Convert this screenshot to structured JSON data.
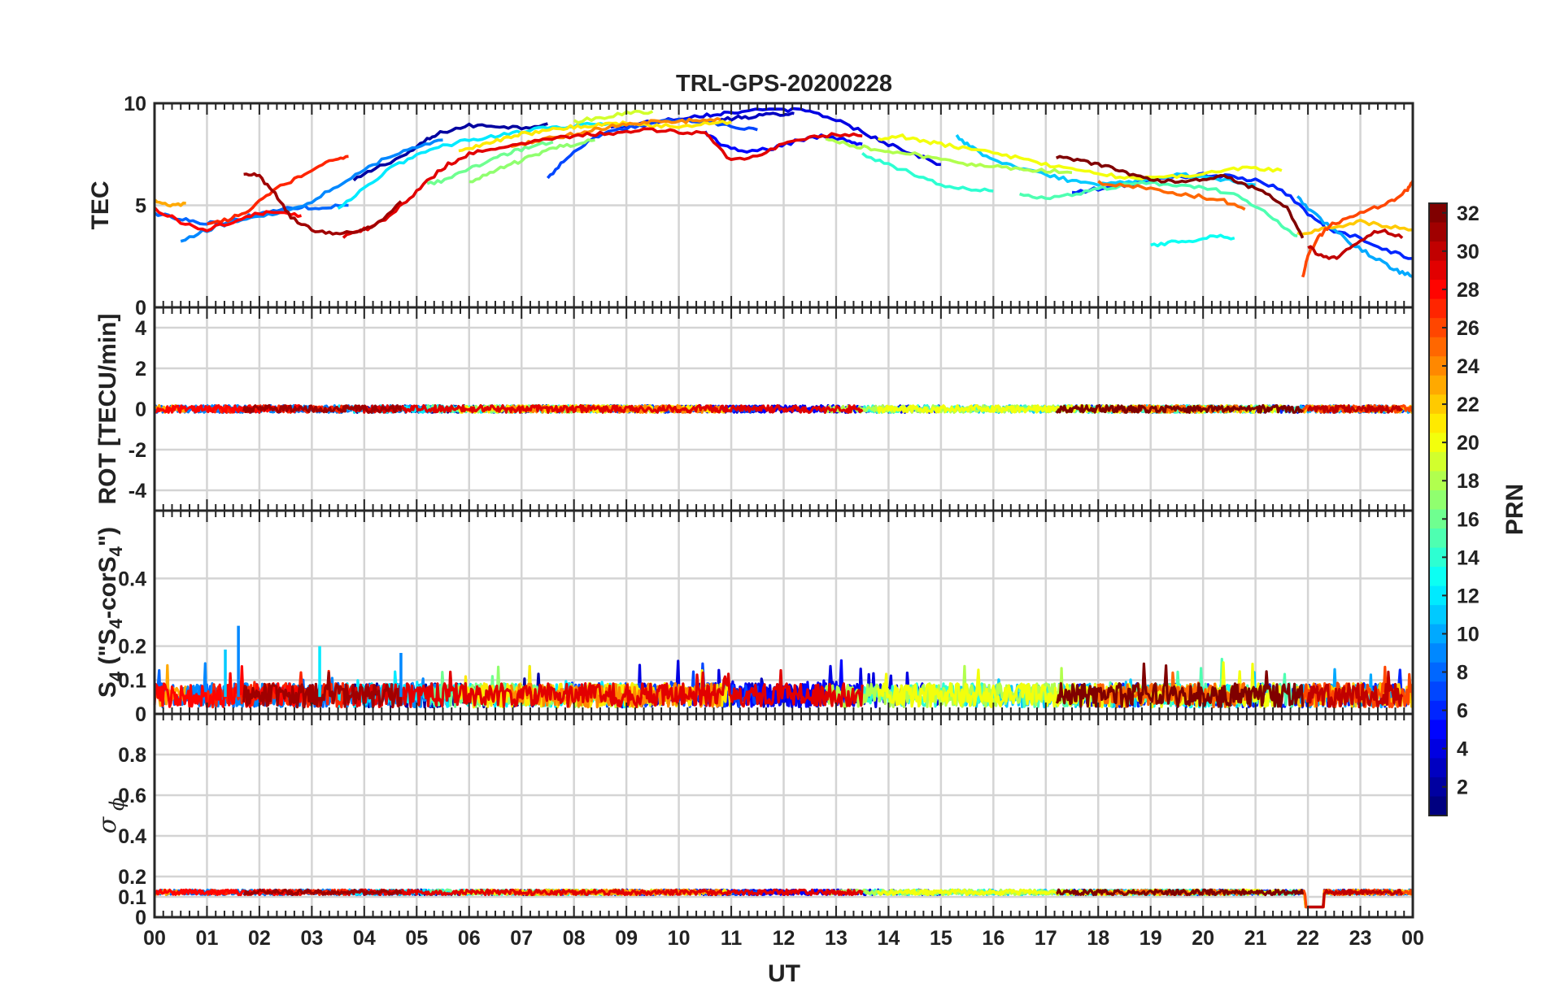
{
  "chart_data": {
    "type": "line",
    "title": "TRL-GPS-20200228",
    "xlabel": "UT",
    "x_tick_labels": [
      "00",
      "01",
      "02",
      "03",
      "04",
      "05",
      "06",
      "07",
      "08",
      "09",
      "10",
      "11",
      "12",
      "13",
      "14",
      "15",
      "16",
      "17",
      "18",
      "19",
      "20",
      "21",
      "22",
      "23",
      "00"
    ],
    "xlim_hours": [
      0,
      24
    ],
    "grid": true,
    "panels": [
      {
        "key": "tec",
        "ylabel": "TEC",
        "ylim": [
          0,
          10
        ],
        "yticks": [
          0,
          5,
          10
        ],
        "ytick_labels": [
          "0",
          "5",
          "10"
        ]
      },
      {
        "key": "rot",
        "ylabel": "ROT [TECU/min]",
        "ylim": [
          -5,
          5
        ],
        "yticks": [
          -4,
          -2,
          0,
          2,
          4
        ],
        "ytick_labels": [
          "-4",
          "-2",
          "0",
          "2",
          "4"
        ]
      },
      {
        "key": "s4",
        "ylabel_main": "S",
        "ylabel_sub": "4",
        "ylabel_rest": " (\"S",
        "ylabel_sub2": "4",
        "ylabel_mid": "-corS",
        "ylabel_sub3": "4",
        "ylabel_end": "\")",
        "ylim": [
          0,
          0.6
        ],
        "yticks": [
          0,
          0.1,
          0.2,
          0.4
        ],
        "ytick_labels": [
          "0",
          "0.1",
          "0.2",
          "0.4"
        ]
      },
      {
        "key": "sigma",
        "ylabel_greek": "σ",
        "ylabel_sub": "ϕ",
        "ylim": [
          0,
          1
        ],
        "yticks": [
          0,
          0.1,
          0.2,
          0.4,
          0.6,
          0.8
        ],
        "ytick_labels": [
          "0",
          "0.1",
          "0.2",
          "0.4",
          "0.6",
          "0.8"
        ]
      }
    ],
    "colorbar": {
      "label": "PRN",
      "colormap": "jet",
      "range": [
        1,
        32
      ],
      "tick_labels": [
        "2",
        "4",
        "6",
        "8",
        "10",
        "12",
        "14",
        "16",
        "18",
        "20",
        "22",
        "24",
        "26",
        "28",
        "30",
        "32"
      ]
    },
    "tec_series": [
      {
        "prn": 2,
        "x": [
          3.8,
          4.2,
          4.8,
          5.2,
          5.5,
          6.0,
          6.5,
          7.0,
          7.5
        ],
        "y": [
          6.2,
          6.8,
          7.5,
          8.2,
          8.6,
          8.9,
          8.9,
          8.8,
          9.0
        ]
      },
      {
        "prn": 3,
        "x": [
          10.8,
          11.2,
          11.6,
          12.0,
          12.2
        ],
        "y": [
          9.2,
          9.3,
          9.4,
          9.5,
          9.5
        ]
      },
      {
        "prn": 4,
        "x": [
          8.7,
          9.2,
          9.8,
          10.4,
          10.8,
          11.2,
          12.0,
          12.5,
          13.0,
          13.5,
          14.0,
          14.5,
          15.0
        ],
        "y": [
          8.8,
          9.0,
          9.2,
          9.4,
          9.5,
          9.6,
          9.7,
          9.6,
          9.2,
          8.6,
          8.0,
          7.5,
          7.0
        ]
      },
      {
        "prn": 5,
        "x": [
          10.5,
          10.8,
          11.2,
          11.8,
          12.3,
          12.8,
          13.2,
          13.5
        ],
        "y": [
          8.6,
          8.0,
          7.6,
          7.8,
          8.2,
          8.4,
          8.2,
          8.0
        ]
      },
      {
        "prn": 6,
        "x": [
          17.5,
          18.0,
          18.5,
          19.0,
          19.5,
          20.0,
          20.5,
          21.0,
          21.5,
          22.0,
          22.4,
          23.0,
          23.5,
          24.0
        ],
        "y": [
          5.6,
          5.8,
          6.0,
          6.2,
          6.4,
          6.5,
          6.4,
          6.2,
          5.8,
          4.6,
          3.8,
          3.4,
          2.8,
          2.4
        ]
      },
      {
        "prn": 7,
        "x": [
          7.5,
          7.8,
          8.2,
          8.6,
          9.0,
          9.5,
          10.0,
          10.5,
          11.0,
          11.5
        ],
        "y": [
          6.3,
          7.2,
          8.0,
          8.6,
          8.8,
          9.0,
          9.2,
          9.1,
          8.9,
          8.7
        ]
      },
      {
        "prn": 8,
        "x": [
          0.0,
          0.4,
          0.8,
          1.2,
          1.6,
          2.0,
          2.4,
          2.8,
          3.2,
          3.7
        ],
        "y": [
          4.6,
          4.4,
          4.2,
          4.1,
          4.3,
          4.6,
          4.8,
          4.9,
          4.9,
          5.0
        ]
      },
      {
        "prn": 9,
        "x": [
          0.5,
          1.0,
          1.5,
          2.0,
          2.5,
          3.0,
          3.5,
          4.0,
          4.5,
          5.0,
          5.5
        ],
        "y": [
          3.2,
          3.8,
          4.2,
          4.5,
          4.7,
          5.2,
          6.0,
          6.8,
          7.4,
          7.9,
          8.2
        ]
      },
      {
        "prn": 10,
        "x": [
          21.8,
          22.1,
          22.5,
          22.9,
          23.3,
          23.7,
          24.0
        ],
        "y": [
          5.4,
          4.6,
          3.8,
          3.0,
          2.4,
          1.8,
          1.5
        ]
      },
      {
        "prn": 11,
        "x": [
          15.3,
          15.6,
          16.0,
          16.5,
          17.0,
          17.5,
          18.0,
          18.5,
          19.0,
          19.5,
          20.0,
          20.5,
          21.0
        ],
        "y": [
          8.4,
          7.8,
          7.2,
          6.8,
          6.5,
          6.2,
          6.0,
          6.1,
          6.3,
          6.5,
          6.4,
          6.2,
          6.0
        ]
      },
      {
        "prn": 12,
        "x": [
          3.5,
          4.0,
          4.5,
          5.0,
          5.5,
          6.0,
          6.5,
          7.0,
          7.5,
          8.0,
          8.5,
          9.0
        ],
        "y": [
          4.8,
          5.8,
          6.8,
          7.5,
          7.9,
          8.2,
          8.4,
          8.6,
          8.8,
          8.9,
          9.0,
          9.0
        ]
      },
      {
        "prn": 13,
        "x": [
          19.0,
          19.4,
          19.8,
          20.2,
          20.6
        ],
        "y": [
          3.0,
          3.2,
          3.3,
          3.5,
          3.4
        ]
      },
      {
        "prn": 14,
        "x": [
          13.5,
          14.0,
          14.5,
          15.0,
          15.5,
          16.0
        ],
        "y": [
          7.5,
          7.0,
          6.5,
          6.0,
          5.8,
          5.7
        ]
      },
      {
        "prn": 15,
        "x": [
          16.5,
          17.0,
          17.5,
          18.0,
          18.5,
          19.0,
          19.5,
          20.0,
          20.5,
          21.0,
          21.5,
          21.8
        ],
        "y": [
          5.5,
          5.3,
          5.5,
          5.8,
          6.0,
          6.1,
          6.0,
          5.9,
          5.6,
          5.0,
          4.0,
          3.5
        ]
      },
      {
        "prn": 16,
        "x": [
          5.2,
          5.6,
          6.0,
          6.4,
          6.8,
          7.2,
          7.6
        ],
        "y": [
          6.0,
          6.3,
          6.8,
          7.2,
          7.6,
          7.9,
          8.1
        ]
      },
      {
        "prn": 17,
        "x": [
          6.0,
          6.4,
          6.8,
          7.2,
          7.6,
          8.0,
          8.4
        ],
        "y": [
          6.1,
          6.6,
          7.0,
          7.4,
          7.8,
          8.0,
          8.2
        ]
      },
      {
        "prn": 18,
        "x": [
          12.8,
          13.2,
          13.6,
          14.0,
          14.5,
          15.0,
          15.5,
          16.0,
          16.5,
          17.0,
          17.5
        ],
        "y": [
          8.2,
          8.0,
          7.8,
          7.6,
          7.5,
          7.2,
          7.0,
          6.9,
          6.8,
          6.7,
          6.6
        ]
      },
      {
        "prn": 19,
        "x": [
          8.0,
          8.5,
          9.0,
          9.5
        ],
        "y": [
          9.1,
          9.3,
          9.5,
          9.6
        ]
      },
      {
        "prn": 20,
        "x": [
          13.8,
          14.2,
          14.6,
          15.0,
          15.5,
          16.0,
          16.5,
          17.0,
          17.5,
          18.0,
          18.5,
          19.0,
          19.5,
          20.0,
          20.5,
          21.0,
          21.5
        ],
        "y": [
          8.2,
          8.4,
          8.2,
          8.0,
          7.8,
          7.6,
          7.3,
          7.0,
          6.8,
          6.5,
          6.4,
          6.3,
          6.4,
          6.6,
          6.8,
          6.8,
          6.7
        ]
      },
      {
        "prn": 21,
        "x": [
          5.8,
          6.2,
          6.6,
          7.0,
          7.4,
          7.8,
          8.2,
          8.6,
          9.0,
          9.5,
          10.0,
          10.5,
          11.0
        ],
        "y": [
          7.6,
          7.9,
          8.2,
          8.5,
          8.6,
          8.8,
          8.9,
          9.0,
          9.0,
          8.9,
          8.9,
          9.0,
          9.1
        ]
      },
      {
        "prn": 22,
        "x": [
          21.8,
          22.2,
          22.6,
          23.0,
          23.5,
          24.0
        ],
        "y": [
          3.6,
          3.8,
          4.0,
          4.2,
          4.0,
          3.8
        ]
      },
      {
        "prn": 23,
        "x": [
          0.0,
          0.3,
          0.6
        ],
        "y": [
          5.2,
          5.0,
          5.1
        ]
      },
      {
        "prn": 24,
        "x": [
          6.8,
          7.2,
          7.6,
          8.0,
          8.4,
          8.8,
          9.2,
          9.6,
          10.0,
          10.4,
          10.8
        ],
        "y": [
          7.8,
          8.1,
          8.3,
          8.5,
          8.7,
          8.9,
          9.0,
          9.1,
          9.1,
          9.2,
          9.2
        ]
      },
      {
        "prn": 25,
        "x": [
          18.0,
          18.5,
          19.0,
          19.5,
          20.0,
          20.4,
          20.8
        ],
        "y": [
          6.1,
          6.0,
          5.8,
          5.6,
          5.4,
          5.2,
          4.8
        ]
      },
      {
        "prn": 26,
        "x": [
          21.9,
          22.0,
          22.2,
          22.4,
          22.8,
          23.2,
          23.6,
          23.9,
          24.0
        ],
        "y": [
          1.4,
          2.6,
          3.4,
          4.0,
          4.4,
          4.8,
          5.2,
          5.8,
          6.2
        ]
      },
      {
        "prn": 27,
        "x": [
          1.0,
          1.4,
          1.8,
          2.2,
          2.6,
          3.0,
          3.4,
          3.7
        ],
        "y": [
          4.0,
          4.3,
          4.8,
          5.6,
          6.2,
          6.7,
          7.2,
          7.4
        ]
      },
      {
        "prn": 28,
        "x": [
          0.0,
          0.5,
          1.0,
          1.5,
          2.0,
          2.4,
          2.8
        ],
        "y": [
          4.8,
          4.2,
          3.8,
          4.2,
          4.6,
          4.7,
          4.5
        ]
      },
      {
        "prn": 29,
        "x": [
          3.6,
          4.0,
          4.4,
          4.8,
          5.2,
          5.6,
          6.0,
          6.5,
          7.0,
          7.5,
          8.0,
          8.5,
          9.0,
          9.5,
          10.0,
          10.5,
          11.0,
          11.5,
          12.0,
          12.5,
          13.0,
          13.5
        ],
        "y": [
          3.5,
          3.8,
          4.3,
          5.2,
          6.2,
          7.0,
          7.5,
          7.8,
          8.0,
          8.2,
          8.4,
          8.5,
          8.6,
          8.7,
          8.6,
          8.5,
          7.2,
          7.4,
          8.0,
          8.3,
          8.5,
          8.4
        ]
      },
      {
        "prn": 30,
        "x": [
          22.0,
          22.3,
          22.6,
          23.0,
          23.4,
          23.8
        ],
        "y": [
          3.0,
          2.4,
          2.5,
          3.3,
          3.8,
          3.4
        ]
      },
      {
        "prn": 31,
        "x": [
          1.7,
          2.0,
          2.3,
          2.6,
          3.0,
          3.4,
          3.8,
          4.2,
          4.7
        ],
        "y": [
          6.6,
          6.4,
          5.6,
          4.4,
          3.8,
          3.6,
          3.7,
          4.0,
          5.2
        ]
      },
      {
        "prn": 32,
        "x": [
          17.2,
          17.6,
          18.0,
          18.4,
          18.8,
          19.2,
          19.6,
          20.0,
          20.4,
          20.8,
          21.2,
          21.6,
          21.9
        ],
        "y": [
          7.4,
          7.2,
          7.0,
          6.7,
          6.4,
          6.2,
          6.1,
          6.3,
          6.4,
          6.0,
          5.6,
          4.9,
          3.4
        ]
      }
    ],
    "rot_summary": "all PRN traces near 0 TECU/min, within about ±0.4",
    "s4_summary": "values mostly 0 to 0.1 with spikes up to about 0.26 near 01.7 UT",
    "sigma_phi_summary": "values around 0.1 to 0.13 for all PRNs; drop to about 0.05 near 22.0–22.3 UT"
  }
}
